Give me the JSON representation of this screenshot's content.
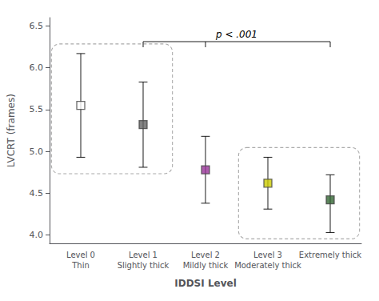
{
  "chart_data": {
    "type": "scatter",
    "marker": "square",
    "xlabel": "IDDSI Level",
    "ylabel": "LVCRT (frames)",
    "categories": [
      "Level 0\nThin",
      "Level 1\nSlightly thick",
      "Level 2\nMildly thick",
      "Level 3\nModerately thick",
      "Extremely thick"
    ],
    "values": [
      5.55,
      5.32,
      4.78,
      4.62,
      4.42
    ],
    "ci_upper": [
      6.17,
      5.83,
      5.18,
      4.93,
      4.72
    ],
    "ci_lower": [
      4.93,
      4.81,
      4.38,
      4.31,
      4.03
    ],
    "colors": [
      "#ffffff",
      "#636363",
      "#993399",
      "#cccc00",
      "#336633"
    ],
    "ylim": [
      3.9,
      6.6
    ],
    "yticks": [
      {
        "value": 4.0,
        "label": "4.0"
      },
      4.5,
      {
        "value": 5.0,
        "label": "5.0"
      },
      5.5,
      {
        "value": 6.0,
        "label": "6.0"
      },
      6.5
    ],
    "grid": false,
    "annotation": "p < .001"
  }
}
